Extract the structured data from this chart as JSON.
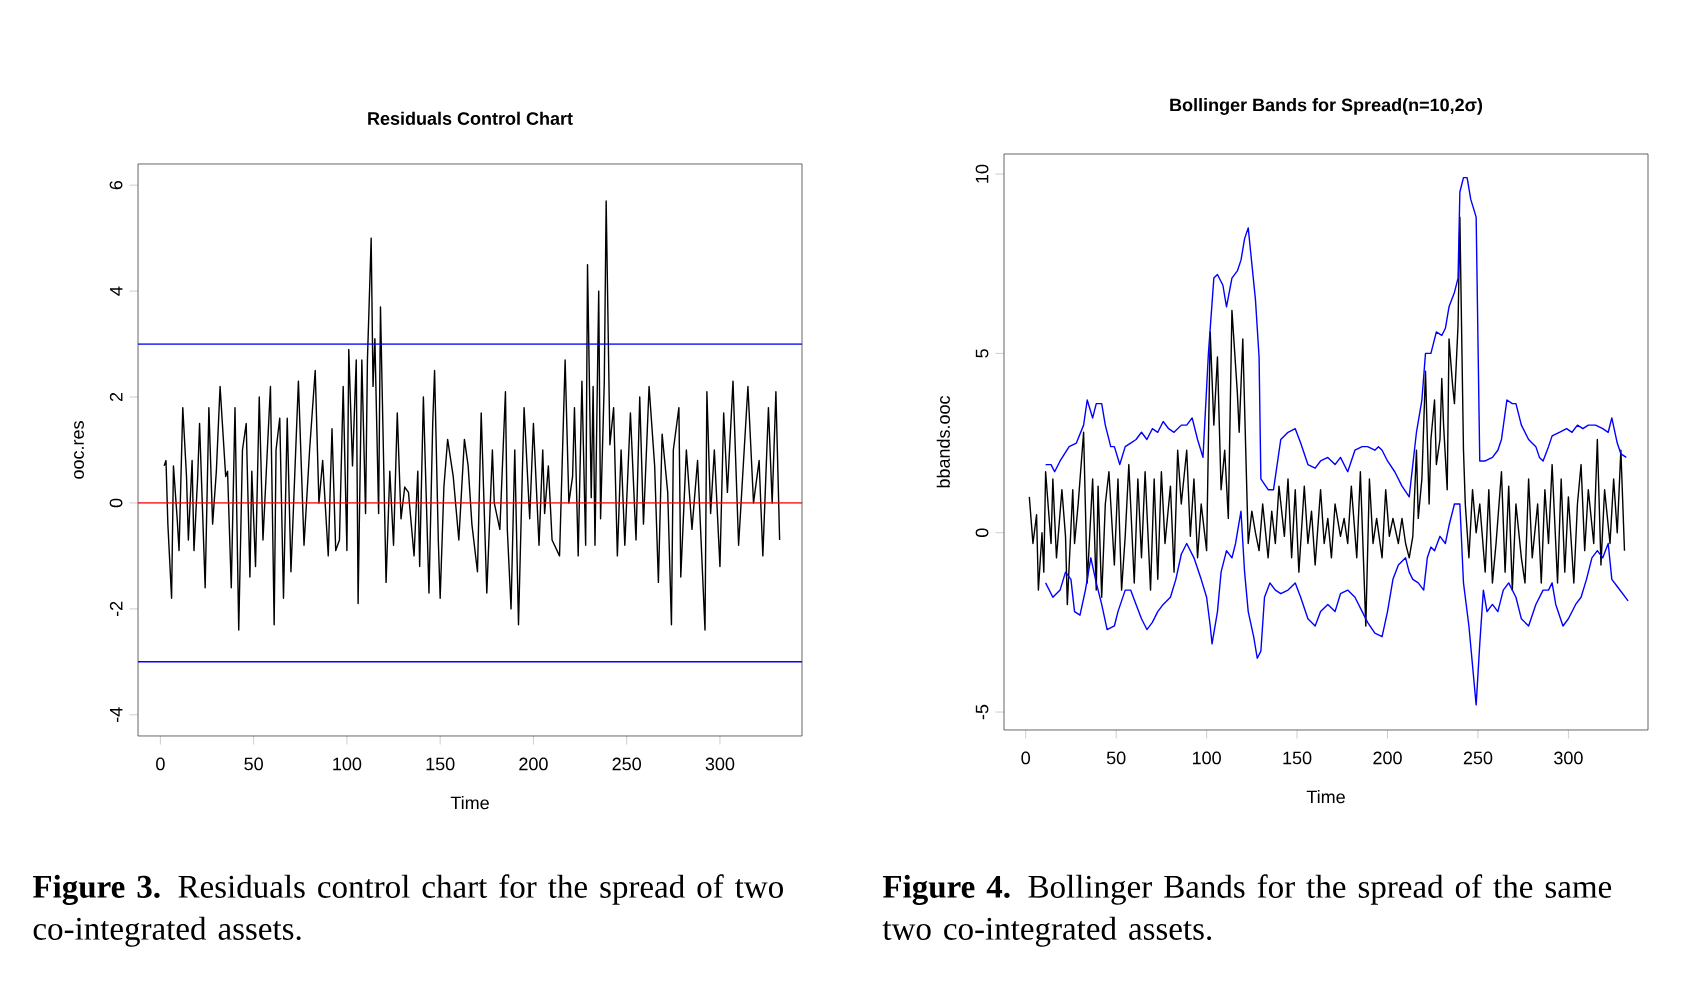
{
  "chart_data": [
    {
      "type": "line",
      "title": "Residuals Control Chart",
      "xlabel": "Time",
      "ylabel": "ooc.res",
      "line_style": "solid",
      "series": [
        {
          "color": "#000000",
          "x": [
            2,
            3,
            4,
            6,
            7,
            9,
            10,
            12,
            14,
            15,
            17,
            18,
            20,
            21,
            24,
            26,
            28,
            30,
            32,
            35,
            36,
            38,
            40,
            42,
            44,
            46,
            48,
            49,
            51,
            53,
            55,
            59,
            61,
            62,
            64,
            66,
            68,
            70,
            74,
            77,
            80,
            83,
            85,
            87,
            90,
            92,
            94,
            96,
            98,
            100,
            101,
            103,
            105,
            106,
            108,
            110,
            111,
            113,
            114,
            115,
            117,
            118,
            121,
            123,
            125,
            127,
            129,
            131,
            133,
            136,
            138,
            139,
            141,
            144,
            146,
            147,
            149,
            150,
            152,
            154,
            157,
            160,
            163,
            165,
            167,
            170,
            172,
            175,
            178,
            179,
            182,
            185,
            186,
            188,
            190,
            192,
            194,
            195,
            198,
            200,
            203,
            205,
            206,
            208,
            210,
            214,
            217,
            219,
            221,
            222,
            224,
            226,
            228,
            229,
            231,
            232,
            233,
            235,
            236,
            238,
            239,
            241,
            243,
            245,
            247,
            249,
            252,
            255,
            257,
            259,
            262,
            265,
            267,
            269,
            272,
            274,
            275,
            278,
            279,
            282,
            285,
            288,
            292,
            293,
            295,
            297,
            300,
            302,
            304,
            307,
            310,
            313,
            315,
            318,
            321,
            323,
            326,
            328,
            330,
            332
          ],
          "values": [
            0.7,
            0.8,
            -0.4,
            -1.8,
            0.7,
            -0.3,
            -0.9,
            1.8,
            0.5,
            -0.7,
            0.8,
            -0.9,
            0.5,
            1.5,
            -1.6,
            1.8,
            -0.4,
            0.6,
            2.2,
            0.5,
            0.6,
            -1.6,
            1.8,
            -2.4,
            1.0,
            1.5,
            -1.4,
            0.6,
            -1.2,
            2.0,
            -0.7,
            2.2,
            -2.3,
            1.0,
            1.6,
            -1.8,
            1.6,
            -1.3,
            2.3,
            -0.8,
            1.0,
            2.5,
            0.0,
            0.8,
            -1.0,
            1.4,
            -0.9,
            -0.7,
            2.2,
            -0.9,
            2.9,
            0.7,
            2.7,
            -1.9,
            2.7,
            -0.2,
            2.7,
            5.0,
            2.2,
            3.1,
            -0.2,
            3.7,
            -1.5,
            0.6,
            -0.8,
            1.7,
            -0.3,
            0.3,
            0.2,
            -1.0,
            0.6,
            -1.2,
            2.0,
            -1.7,
            1.5,
            2.5,
            -0.7,
            -1.8,
            0.3,
            1.2,
            0.5,
            -0.7,
            1.2,
            0.7,
            -0.4,
            -1.3,
            1.7,
            -1.7,
            1.0,
            0.0,
            -0.5,
            2.1,
            -0.5,
            -2.0,
            1.0,
            -2.3,
            0.5,
            1.8,
            -0.3,
            1.5,
            -0.8,
            1.0,
            -0.2,
            0.7,
            -0.7,
            -1.0,
            2.7,
            0.0,
            0.5,
            1.8,
            -1.0,
            2.3,
            -0.8,
            4.5,
            0.1,
            2.2,
            -0.8,
            4.0,
            -0.3,
            2.3,
            5.7,
            1.1,
            1.8,
            -1.0,
            1.0,
            -0.8,
            1.7,
            -0.7,
            2.0,
            -0.4,
            2.2,
            0.7,
            -1.5,
            1.3,
            0.2,
            -2.3,
            1.0,
            1.8,
            -1.4,
            1.0,
            -0.5,
            0.8,
            -2.4,
            2.1,
            -0.2,
            1.0,
            -1.2,
            1.7,
            0.2,
            2.3,
            -0.8,
            1.0,
            2.2,
            0.0,
            0.8,
            -1.0,
            1.8,
            0.0,
            2.1,
            -0.7
          ]
        }
      ],
      "xlim": [
        -12,
        344
      ],
      "ylim": [
        -4.4,
        6.4
      ],
      "xticks": [
        0,
        50,
        100,
        150,
        200,
        250,
        300
      ],
      "yticks": [
        -4,
        -2,
        0,
        2,
        4,
        6
      ],
      "ref_lines": [
        {
          "axis": "y",
          "value": 3,
          "color": "#0000ff"
        },
        {
          "axis": "y",
          "value": -3,
          "color": "#0000ff"
        },
        {
          "axis": "y",
          "value": 0,
          "color": "#ff0000"
        }
      ],
      "annotations": [
        "**Figure 3.** Residuals control chart for the spread of two co-integrated assets."
      ]
    },
    {
      "type": "line",
      "title": "Bollinger Bands for Spread(n=10,2σ)",
      "xlabel": "Time",
      "ylabel": "bbands.ooc",
      "line_style": "solid",
      "series": [
        {
          "color": "#000000",
          "x": [
            2,
            4,
            6,
            7,
            9,
            10,
            11,
            14,
            15,
            17,
            20,
            22,
            23,
            26,
            27,
            29,
            32,
            34,
            37,
            39,
            40,
            42,
            44,
            46,
            49,
            51,
            53,
            55,
            57,
            60,
            62,
            64,
            66,
            69,
            71,
            73,
            75,
            77,
            80,
            82,
            84,
            86,
            89,
            91,
            93,
            95,
            97,
            100,
            102,
            104,
            106,
            108,
            110,
            112,
            114,
            117,
            118,
            120,
            123,
            125,
            127,
            129,
            131,
            134,
            136,
            138,
            140,
            143,
            145,
            147,
            149,
            151,
            154,
            156,
            158,
            160,
            163,
            165,
            167,
            169,
            171,
            174,
            176,
            178,
            180,
            183,
            185,
            188,
            190,
            192,
            194,
            197,
            199,
            201,
            203,
            206,
            208,
            210,
            212,
            214,
            216,
            217,
            219,
            221,
            223,
            224,
            226,
            227,
            229,
            230,
            231,
            233,
            234,
            236,
            237,
            239,
            240,
            242,
            243,
            245,
            247,
            249,
            251,
            254,
            256,
            258,
            260,
            263,
            265,
            267,
            269,
            271,
            274,
            276,
            278,
            280,
            283,
            285,
            287,
            289,
            291,
            294,
            296,
            298,
            300,
            303,
            305,
            307,
            309,
            311,
            314,
            316,
            318,
            320,
            323,
            325,
            327,
            329,
            331
          ],
          "values": [
            1.0,
            -0.3,
            0.5,
            -1.6,
            0.0,
            -1.1,
            1.7,
            -0.3,
            1.5,
            -0.7,
            1.2,
            -0.1,
            -2.0,
            1.2,
            -0.3,
            0.8,
            2.8,
            -1.4,
            1.5,
            -1.6,
            1.3,
            -1.8,
            0.8,
            1.7,
            -0.9,
            1.5,
            -1.6,
            -0.1,
            1.9,
            -1.4,
            1.5,
            -0.7,
            1.7,
            -1.6,
            1.5,
            -1.3,
            1.7,
            -0.3,
            1.3,
            -1.1,
            2.3,
            0.8,
            2.3,
            -0.1,
            1.5,
            -0.7,
            0.8,
            -0.5,
            5.6,
            3.0,
            4.9,
            1.2,
            2.3,
            0.4,
            6.2,
            3.9,
            2.8,
            5.4,
            -0.3,
            0.6,
            0.0,
            -0.5,
            0.8,
            -0.7,
            0.6,
            -0.3,
            1.3,
            -0.1,
            1.5,
            -0.7,
            1.2,
            -1.1,
            1.3,
            -0.3,
            0.6,
            -0.9,
            1.2,
            -0.3,
            0.4,
            -0.7,
            0.8,
            -0.1,
            0.4,
            -0.3,
            1.3,
            -0.7,
            1.7,
            -2.6,
            1.5,
            -0.3,
            0.4,
            -0.7,
            1.2,
            -0.1,
            0.4,
            -0.3,
            0.4,
            -0.3,
            -0.7,
            -0.1,
            2.3,
            0.4,
            1.5,
            4.5,
            0.8,
            2.6,
            3.7,
            1.9,
            2.6,
            4.3,
            3.0,
            1.2,
            5.4,
            4.1,
            3.6,
            5.8,
            8.8,
            2.3,
            0.8,
            -0.7,
            1.2,
            0.0,
            0.8,
            -1.1,
            1.2,
            -1.4,
            -0.3,
            1.7,
            -1.1,
            1.3,
            -1.6,
            0.8,
            -0.7,
            -1.4,
            1.5,
            -0.7,
            0.8,
            -1.4,
            1.2,
            -0.3,
            1.9,
            -1.4,
            1.5,
            -1.1,
            1.0,
            -1.4,
            0.8,
            1.9,
            -0.5,
            1.2,
            -0.3,
            2.6,
            -0.9,
            1.2,
            -0.3,
            1.5,
            0.0,
            2.3,
            -0.5
          ]
        },
        {
          "color": "#0000ff",
          "x": [
            11,
            14,
            16,
            19,
            24,
            28,
            32,
            34,
            37,
            39,
            42,
            44,
            47,
            49,
            52,
            55,
            58,
            61,
            64,
            67,
            70,
            73,
            76,
            79,
            82,
            86,
            89,
            92,
            95,
            98,
            101,
            104,
            106,
            109,
            111,
            114,
            117,
            119,
            121,
            123,
            125,
            127,
            129,
            130,
            134,
            137,
            141,
            145,
            149,
            152,
            156,
            160,
            163,
            167,
            171,
            174,
            178,
            182,
            186,
            189,
            193,
            195,
            197,
            200,
            204,
            208,
            212,
            216,
            219,
            221,
            224,
            227,
            230,
            232,
            234,
            237,
            239,
            240,
            242,
            244,
            246,
            249,
            251,
            254,
            258,
            261,
            263,
            266,
            269,
            271,
            274,
            278,
            282,
            284,
            286,
            289,
            291,
            295,
            299,
            302,
            305,
            308,
            311,
            315,
            319,
            322,
            324,
            327,
            329,
            332
          ],
          "values": [
            1.9,
            1.9,
            1.7,
            2.0,
            2.4,
            2.5,
            3.0,
            3.7,
            3.2,
            3.6,
            3.6,
            3.0,
            2.4,
            2.4,
            1.9,
            2.4,
            2.5,
            2.6,
            2.8,
            2.6,
            2.9,
            2.8,
            3.1,
            2.9,
            2.8,
            3.0,
            3.0,
            3.2,
            2.6,
            2.1,
            5.0,
            7.1,
            7.2,
            6.9,
            6.3,
            7.1,
            7.3,
            7.6,
            8.2,
            8.5,
            7.5,
            6.5,
            4.9,
            1.5,
            1.2,
            1.2,
            2.6,
            2.8,
            2.9,
            2.5,
            1.9,
            1.8,
            2.0,
            2.1,
            1.9,
            2.1,
            1.7,
            2.3,
            2.4,
            2.4,
            2.3,
            2.4,
            2.3,
            2.0,
            1.7,
            1.3,
            1.0,
            2.8,
            3.7,
            5.0,
            5.0,
            5.6,
            5.5,
            5.7,
            6.3,
            6.7,
            7.1,
            9.5,
            9.9,
            9.9,
            9.3,
            8.8,
            2.0,
            2.0,
            2.1,
            2.3,
            2.6,
            3.7,
            3.6,
            3.6,
            3.0,
            2.6,
            2.4,
            2.1,
            2.0,
            2.4,
            2.7,
            2.8,
            2.9,
            2.8,
            3.0,
            2.9,
            3.0,
            3.0,
            2.9,
            2.8,
            3.2,
            2.5,
            2.2,
            2.1
          ]
        },
        {
          "color": "#0000ff",
          "x": [
            11,
            15,
            19,
            22,
            25,
            27,
            30,
            33,
            36,
            39,
            42,
            45,
            49,
            51,
            55,
            58,
            61,
            64,
            67,
            70,
            73,
            76,
            80,
            83,
            86,
            89,
            93,
            97,
            100,
            102,
            103,
            106,
            108,
            111,
            114,
            116,
            119,
            121,
            123,
            126,
            128,
            130,
            132,
            135,
            138,
            141,
            145,
            149,
            152,
            156,
            160,
            163,
            167,
            171,
            174,
            178,
            182,
            186,
            189,
            193,
            197,
            200,
            203,
            206,
            210,
            212,
            214,
            217,
            220,
            222,
            224,
            226,
            229,
            232,
            234,
            237,
            240,
            242,
            245,
            247,
            249,
            251,
            253,
            255,
            258,
            261,
            264,
            267,
            271,
            274,
            278,
            282,
            286,
            289,
            291,
            293,
            297,
            300,
            304,
            307,
            310,
            313,
            316,
            319,
            322,
            324,
            327,
            330,
            333
          ],
          "values": [
            -1.4,
            -1.8,
            -1.6,
            -1.1,
            -1.3,
            -2.2,
            -2.3,
            -1.6,
            -0.7,
            -1.4,
            -2.0,
            -2.7,
            -2.6,
            -2.2,
            -1.6,
            -1.6,
            -2.0,
            -2.4,
            -2.7,
            -2.5,
            -2.2,
            -2.0,
            -1.8,
            -1.3,
            -0.6,
            -0.3,
            -0.7,
            -1.3,
            -1.8,
            -2.6,
            -3.1,
            -2.2,
            -1.1,
            -0.5,
            -0.7,
            -0.3,
            0.6,
            -1.1,
            -2.2,
            -2.9,
            -3.5,
            -3.3,
            -1.8,
            -1.4,
            -1.6,
            -1.7,
            -1.6,
            -1.4,
            -1.8,
            -2.4,
            -2.6,
            -2.2,
            -2.0,
            -2.2,
            -1.7,
            -1.6,
            -1.8,
            -2.2,
            -2.5,
            -2.8,
            -2.9,
            -2.2,
            -1.3,
            -0.9,
            -0.7,
            -1.1,
            -1.3,
            -1.4,
            -1.6,
            -0.7,
            -0.4,
            -0.5,
            -0.1,
            -0.3,
            0.2,
            0.8,
            0.8,
            -1.4,
            -2.6,
            -3.7,
            -4.8,
            -3.1,
            -1.6,
            -2.2,
            -2.0,
            -2.2,
            -1.6,
            -1.4,
            -1.8,
            -2.4,
            -2.6,
            -2.0,
            -1.6,
            -1.6,
            -1.4,
            -2.0,
            -2.6,
            -2.4,
            -2.0,
            -1.8,
            -1.3,
            -0.7,
            -0.5,
            -0.7,
            -0.3,
            -1.3,
            -1.5,
            -1.7,
            -1.9
          ]
        }
      ],
      "xlim": [
        -12,
        344
      ],
      "ylim": [
        -5.5,
        10.56
      ],
      "xticks": [
        0,
        50,
        100,
        150,
        200,
        250,
        300
      ],
      "yticks": [
        -5,
        0,
        5,
        10
      ],
      "annotations": [
        "**Figure 4.** Bollinger Bands for the spread of the same two co-integrated assets."
      ]
    }
  ]
}
